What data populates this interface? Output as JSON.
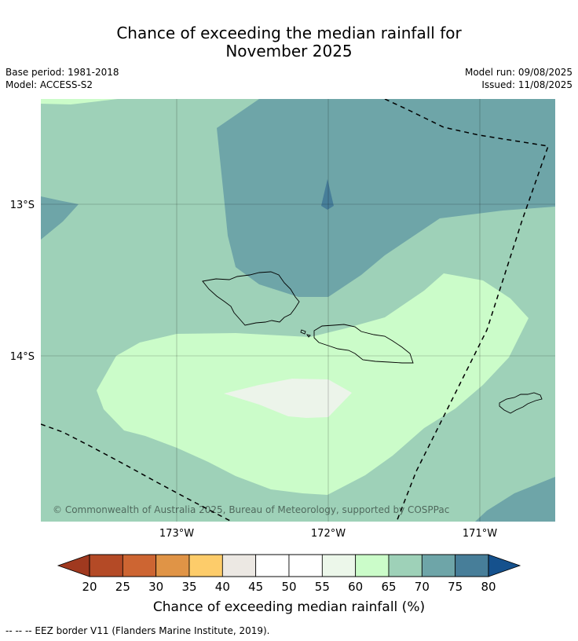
{
  "title": {
    "line1": "Chance of exceeding the median rainfall for",
    "line2": "November 2025"
  },
  "meta": {
    "base_period": "Base period: 1981-2018",
    "model": "Model: ACCESS-S2",
    "model_run": "Model run: 09/08/2025",
    "issued": "Issued: 11/08/2025"
  },
  "map": {
    "lat_labels": [
      "13°S",
      "14°S"
    ],
    "lon_labels": [
      "173°W",
      "172°W",
      "171°W"
    ],
    "copyright": "© Commonwealth of Australia 2025, Bureau of Meteorology, supported by COSPPac"
  },
  "legend": {
    "label": "Chance of exceeding median rainfall (%)",
    "ticks": [
      "20",
      "25",
      "30",
      "35",
      "40",
      "45",
      "50",
      "55",
      "60",
      "65",
      "70",
      "75",
      "80"
    ],
    "colors": [
      "#a0391f",
      "#b44a26",
      "#cd6532",
      "#e09446",
      "#fdcc6a",
      "#ece8e3",
      "#ffffff",
      "#ffffff",
      "#ecf7ea",
      "#cbfcc9",
      "#9ed1b8",
      "#6ea5a8",
      "#477e99",
      "#15518d"
    ],
    "extend_below_color": "#a0391f",
    "extend_above_color": "#15518d"
  },
  "footnote": "-- -- -- EEZ border V11 (Flanders Marine Institute, 2019)."
}
